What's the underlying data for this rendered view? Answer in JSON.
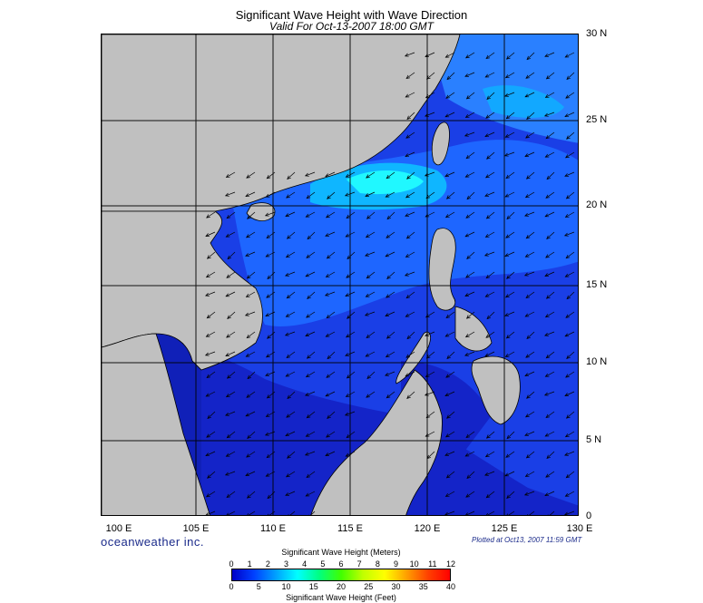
{
  "title": "Significant Wave Height with Wave Direction",
  "subtitle": "Valid For Oct-13-2007 18:00 GMT",
  "lat_labels": [
    "30 N",
    "25 N",
    "20 N",
    "15 N",
    "10 N",
    "5 N",
    "0"
  ],
  "lon_labels": [
    "100 E",
    "105 E",
    "110 E",
    "115 E",
    "120 E",
    "125 E",
    "130 E"
  ],
  "brand": "oceanweather inc.",
  "plotted": "Plotted at Oct13, 2007 11:59 GMT",
  "legend": {
    "meters_title": "Significant Wave Height (Meters)",
    "feet_title": "Significant Wave Height (Feet)",
    "meters_ticks": [
      "0",
      "1",
      "2",
      "3",
      "4",
      "5",
      "6",
      "7",
      "8",
      "9",
      "10",
      "11",
      "12"
    ],
    "feet_ticks": [
      "0",
      "5",
      "10",
      "15",
      "20",
      "25",
      "30",
      "35",
      "40"
    ],
    "colors": [
      "#0000c8",
      "#0040ff",
      "#00a0ff",
      "#00ffff",
      "#00ff80",
      "#40ff00",
      "#c0ff00",
      "#ffff00",
      "#ffa000",
      "#ff4000",
      "#ff0000"
    ]
  },
  "map": {
    "land_color": "#c0c0c0",
    "ocean_colors": {
      "low": "#1222c8",
      "mid": "#1e6cff",
      "high": "#00ffff"
    }
  }
}
